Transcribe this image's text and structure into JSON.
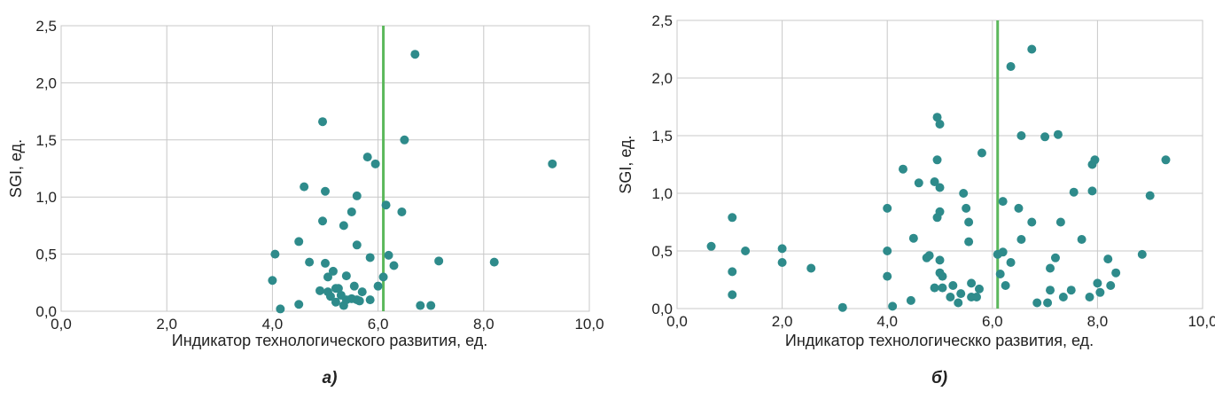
{
  "point_color": "#2e8b8b",
  "threshold_color": "#5cb85c",
  "chart_data": [
    {
      "type": "scatter",
      "panel_label": "а)",
      "xlabel": "Индикатор технологического развития, ед.",
      "ylabel": "SGI, ед.",
      "xlim": [
        0,
        10
      ],
      "ylim": [
        0,
        2.5
      ],
      "x_ticks": [
        "0,0",
        "2,0",
        "4,0",
        "6,0",
        "8,0",
        "10,0"
      ],
      "y_ticks": [
        "0,0",
        "0,5",
        "1,0",
        "1,5",
        "2,0",
        "2,5"
      ],
      "threshold_x": 6.1,
      "points": [
        [
          4.05,
          0.5
        ],
        [
          4.0,
          0.27
        ],
        [
          4.15,
          0.02
        ],
        [
          4.5,
          0.06
        ],
        [
          4.5,
          0.61
        ],
        [
          4.6,
          1.09
        ],
        [
          4.7,
          0.43
        ],
        [
          4.9,
          0.18
        ],
        [
          4.95,
          0.79
        ],
        [
          4.95,
          1.66
        ],
        [
          5.0,
          1.05
        ],
        [
          5.0,
          0.42
        ],
        [
          5.05,
          0.3
        ],
        [
          5.05,
          0.17
        ],
        [
          5.1,
          0.13
        ],
        [
          5.15,
          0.35
        ],
        [
          5.2,
          0.08
        ],
        [
          5.2,
          0.2
        ],
        [
          5.25,
          0.2
        ],
        [
          5.3,
          0.14
        ],
        [
          5.35,
          0.05
        ],
        [
          5.35,
          0.75
        ],
        [
          5.4,
          0.31
        ],
        [
          5.4,
          0.1
        ],
        [
          5.5,
          0.87
        ],
        [
          5.5,
          0.11
        ],
        [
          5.55,
          0.22
        ],
        [
          5.6,
          1.01
        ],
        [
          5.6,
          0.58
        ],
        [
          5.6,
          0.1
        ],
        [
          5.65,
          0.09
        ],
        [
          5.7,
          0.17
        ],
        [
          5.8,
          1.35
        ],
        [
          5.85,
          0.47
        ],
        [
          5.85,
          0.1
        ],
        [
          5.95,
          1.29
        ],
        [
          6.0,
          0.22
        ],
        [
          6.1,
          0.3
        ],
        [
          6.15,
          0.93
        ],
        [
          6.2,
          0.49
        ],
        [
          6.3,
          0.4
        ],
        [
          6.45,
          0.87
        ],
        [
          6.5,
          1.5
        ],
        [
          6.7,
          2.25
        ],
        [
          6.8,
          0.05
        ],
        [
          7.0,
          0.05
        ],
        [
          7.15,
          0.44
        ],
        [
          8.2,
          0.43
        ],
        [
          9.3,
          1.29
        ]
      ]
    },
    {
      "type": "scatter",
      "panel_label": "б)",
      "xlabel": "Индикатор технологическко развития, ед.",
      "ylabel": "SGI, ед.",
      "xlim": [
        0,
        10
      ],
      "ylim": [
        0,
        2.5
      ],
      "x_ticks": [
        "0,0",
        "2,0",
        "4,0",
        "6,0",
        "8,0",
        "10,0"
      ],
      "y_ticks": [
        "0,0",
        "0,5",
        "1,0",
        "1,5",
        "2,0",
        "2,5"
      ],
      "threshold_x": 6.1,
      "points": [
        [
          0.65,
          0.54
        ],
        [
          1.05,
          0.79
        ],
        [
          1.05,
          0.32
        ],
        [
          1.05,
          0.12
        ],
        [
          1.3,
          0.5
        ],
        [
          2.0,
          0.52
        ],
        [
          2.0,
          0.4
        ],
        [
          2.55,
          0.35
        ],
        [
          3.15,
          0.01
        ],
        [
          4.0,
          0.87
        ],
        [
          4.0,
          0.5
        ],
        [
          4.0,
          0.28
        ],
        [
          4.1,
          0.02
        ],
        [
          4.3,
          1.21
        ],
        [
          4.45,
          0.07
        ],
        [
          4.5,
          0.61
        ],
        [
          4.6,
          1.09
        ],
        [
          4.75,
          0.44
        ],
        [
          4.8,
          0.46
        ],
        [
          4.9,
          1.1
        ],
        [
          4.9,
          0.18
        ],
        [
          4.95,
          1.66
        ],
        [
          4.95,
          1.29
        ],
        [
          4.95,
          0.79
        ],
        [
          5.0,
          1.6
        ],
        [
          5.0,
          1.05
        ],
        [
          5.0,
          0.84
        ],
        [
          5.0,
          0.42
        ],
        [
          5.0,
          0.31
        ],
        [
          5.05,
          0.28
        ],
        [
          5.05,
          0.18
        ],
        [
          5.2,
          0.1
        ],
        [
          5.25,
          0.2
        ],
        [
          5.35,
          0.05
        ],
        [
          5.4,
          0.13
        ],
        [
          5.45,
          1.0
        ],
        [
          5.5,
          0.87
        ],
        [
          5.55,
          0.75
        ],
        [
          5.55,
          0.58
        ],
        [
          5.6,
          0.22
        ],
        [
          5.6,
          0.1
        ],
        [
          5.7,
          0.1
        ],
        [
          5.75,
          0.17
        ],
        [
          5.8,
          1.35
        ],
        [
          6.1,
          0.47
        ],
        [
          6.15,
          0.3
        ],
        [
          6.2,
          0.93
        ],
        [
          6.2,
          0.49
        ],
        [
          6.25,
          0.2
        ],
        [
          6.35,
          0.4
        ],
        [
          6.35,
          2.1
        ],
        [
          6.5,
          0.87
        ],
        [
          6.55,
          0.6
        ],
        [
          6.55,
          1.5
        ],
        [
          6.75,
          0.75
        ],
        [
          6.75,
          2.25
        ],
        [
          6.85,
          0.05
        ],
        [
          7.0,
          1.49
        ],
        [
          7.05,
          0.05
        ],
        [
          7.1,
          0.35
        ],
        [
          7.1,
          0.16
        ],
        [
          7.2,
          0.44
        ],
        [
          7.25,
          1.51
        ],
        [
          7.3,
          0.75
        ],
        [
          7.35,
          0.1
        ],
        [
          7.5,
          0.16
        ],
        [
          7.55,
          1.01
        ],
        [
          7.7,
          0.6
        ],
        [
          7.85,
          0.1
        ],
        [
          7.9,
          1.02
        ],
        [
          7.9,
          1.25
        ],
        [
          7.95,
          1.29
        ],
        [
          8.0,
          0.22
        ],
        [
          8.05,
          0.14
        ],
        [
          8.2,
          0.43
        ],
        [
          8.25,
          0.2
        ],
        [
          8.35,
          0.31
        ],
        [
          8.85,
          0.47
        ],
        [
          9.0,
          0.98
        ],
        [
          9.3,
          1.29
        ]
      ]
    }
  ]
}
